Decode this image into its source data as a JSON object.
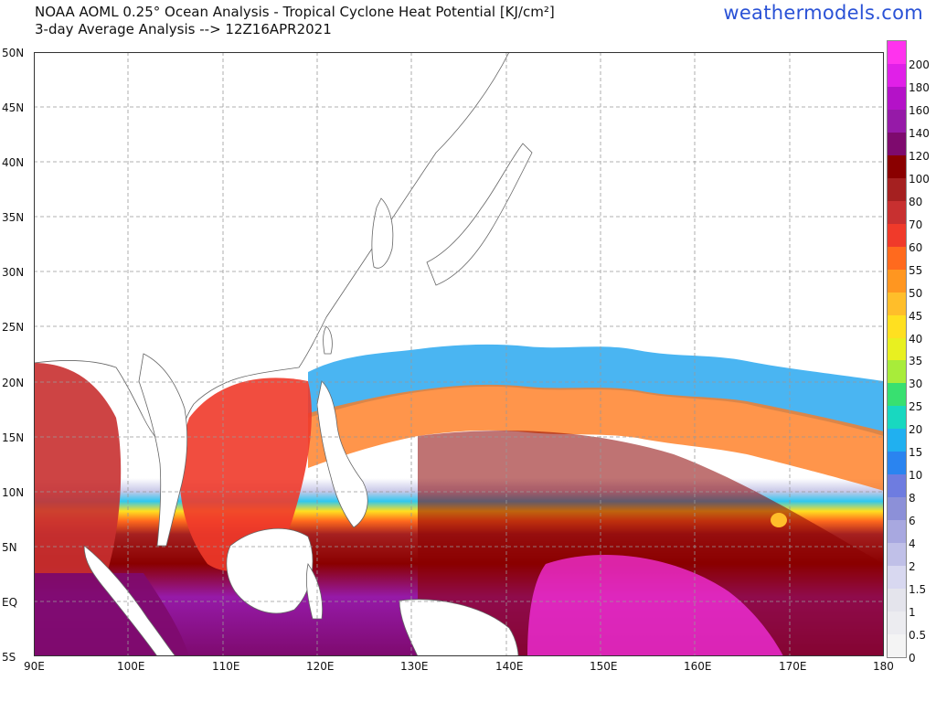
{
  "header": {
    "title_line1": "NOAA AOML 0.25° Ocean Analysis - Tropical Cyclone Heat Potential [KJ/cm²]",
    "title_line2": "3-day Average Analysis --> 12Z16APR2021",
    "brand": "weathermodels.com"
  },
  "map": {
    "lat_labels": [
      "50N",
      "45N",
      "40N",
      "35N",
      "30N",
      "25N",
      "20N",
      "15N",
      "10N",
      "5N",
      "EQ",
      "5S"
    ],
    "lon_labels": [
      "90E",
      "100E",
      "110E",
      "120E",
      "130E",
      "140E",
      "150E",
      "160E",
      "170E",
      "180"
    ]
  },
  "colorbar": {
    "labels": [
      "200",
      "180",
      "160",
      "140",
      "120",
      "100",
      "80",
      "70",
      "60",
      "55",
      "50",
      "45",
      "40",
      "35",
      "30",
      "25",
      "20",
      "15",
      "10",
      "8",
      "6",
      "4",
      "2",
      "1.5",
      "1",
      "0.5",
      "0"
    ],
    "colors": [
      "#ff33ee",
      "#e020e8",
      "#b412c8",
      "#961aa8",
      "#7e0a6e",
      "#8a0000",
      "#a52020",
      "#c83030",
      "#f03a2a",
      "#ff6a1e",
      "#ff9620",
      "#ffbe2a",
      "#ffe020",
      "#e8f020",
      "#a8ec3a",
      "#38e070",
      "#18d8c0",
      "#20b0f0",
      "#2a84f0",
      "#6e7ce0",
      "#8c90d8",
      "#a8a8e0",
      "#c0c0e8",
      "#d8d8f0",
      "#e4e4ec",
      "#ececf0",
      "#f4f4f4"
    ]
  }
}
